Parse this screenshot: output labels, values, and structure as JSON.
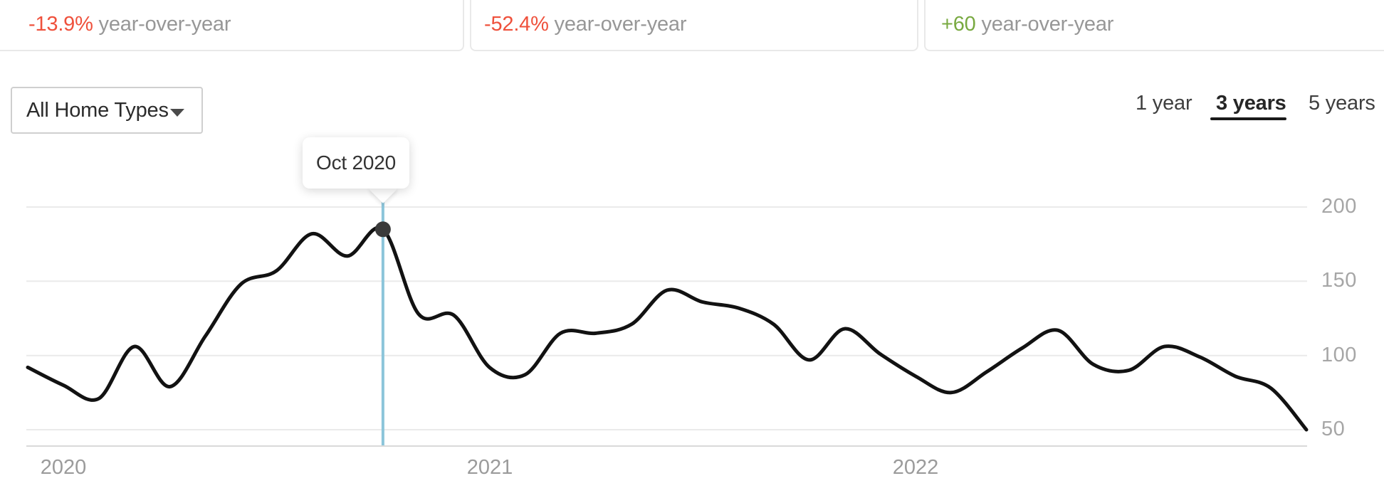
{
  "stats": {
    "cards": [
      {
        "delta": "-13.9%",
        "delta_color": "#ef513c",
        "label": "year-over-year"
      },
      {
        "delta": "-52.4%",
        "delta_color": "#ef513c",
        "label": "year-over-year"
      },
      {
        "delta": "+60",
        "delta_color": "#78a940",
        "label": "year-over-year"
      }
    ]
  },
  "filter": {
    "home_type_value": "All Home Types"
  },
  "range_tabs": [
    {
      "label": "1 year",
      "active": false
    },
    {
      "label": "3 years",
      "active": true
    },
    {
      "label": "5 years",
      "active": false
    }
  ],
  "tooltip": {
    "label": "Oct 2020"
  },
  "chart_data": {
    "type": "line",
    "title": "",
    "xlabel": "",
    "ylabel": "",
    "x": [
      "Dec 2019",
      "Jan 2020",
      "Feb 2020",
      "Mar 2020",
      "Apr 2020",
      "May 2020",
      "Jun 2020",
      "Jul 2020",
      "Aug 2020",
      "Sep 2020",
      "Oct 2020",
      "Nov 2020",
      "Dec 2020",
      "Jan 2021",
      "Feb 2021",
      "Mar 2021",
      "Apr 2021",
      "May 2021",
      "Jun 2021",
      "Jul 2021",
      "Aug 2021",
      "Sep 2021",
      "Oct 2021",
      "Nov 2021",
      "Dec 2021",
      "Jan 2022",
      "Feb 2022",
      "Mar 2022",
      "Apr 2022",
      "May 2022",
      "Jun 2022",
      "Jul 2022",
      "Aug 2022",
      "Sep 2022",
      "Oct 2022",
      "Nov 2022",
      "Dec 2022"
    ],
    "values": [
      92,
      80,
      71,
      106,
      79,
      113,
      148,
      157,
      182,
      167,
      185,
      128,
      127,
      92,
      87,
      115,
      115,
      121,
      144,
      136,
      132,
      121,
      97,
      118,
      101,
      86,
      75,
      89,
      105,
      117,
      94,
      90,
      106,
      99,
      86,
      78,
      50
    ],
    "highlight": {
      "label": "Oct 2020",
      "index": 10,
      "value": 185
    },
    "yticks": [
      50,
      100,
      150,
      200
    ],
    "ylim": [
      40,
      225
    ],
    "x_tick_labels": [
      "2020",
      "2021",
      "2022"
    ],
    "x_tick_indices": [
      1,
      13,
      25
    ],
    "grid": true,
    "legend": false,
    "colors": {
      "line": "#121212",
      "marker": "#3a3a3a",
      "cursor": "#8cc5da",
      "grid": "#eaeaea",
      "axis_line": "#d9d9d9",
      "tick_text": "#9e9e9e"
    }
  }
}
